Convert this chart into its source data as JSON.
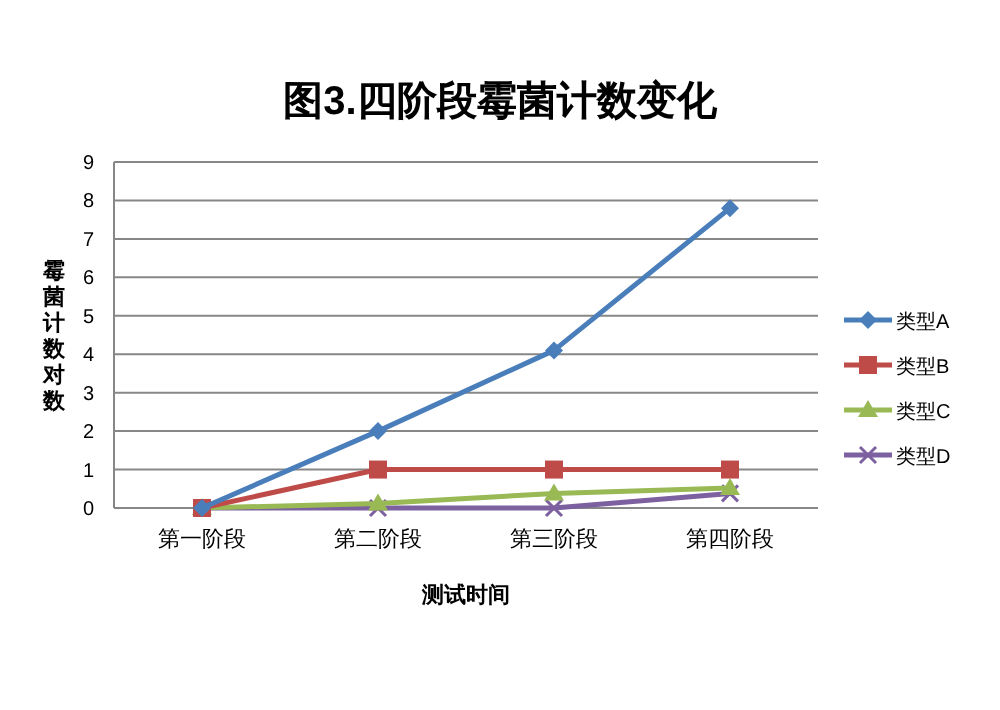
{
  "chart_data": {
    "type": "line",
    "title": "图3.四阶段霉菌计数变化",
    "xlabel": "测试时间",
    "ylabel": "霉菌计数对数",
    "categories": [
      "第一阶段",
      "第二阶段",
      "第三阶段",
      "第四阶段"
    ],
    "ylim": [
      0,
      9
    ],
    "yticks": [
      0,
      1,
      2,
      3,
      4,
      5,
      6,
      7,
      8,
      9
    ],
    "grid": "y",
    "legend": "right",
    "series": [
      {
        "name": "类型A",
        "color": "#4a7ebb",
        "marker": "diamond",
        "values": [
          0,
          2.0,
          4.1,
          7.8
        ]
      },
      {
        "name": "类型B",
        "color": "#be4b48",
        "marker": "square",
        "values": [
          0,
          1,
          1,
          1
        ]
      },
      {
        "name": "类型C",
        "color": "#98b954",
        "marker": "triangle",
        "values": [
          0,
          0.12,
          0.38,
          0.52
        ]
      },
      {
        "name": "类型D",
        "color": "#7d60a0",
        "marker": "cross",
        "values": [
          0,
          0,
          0,
          0.38
        ]
      }
    ]
  }
}
